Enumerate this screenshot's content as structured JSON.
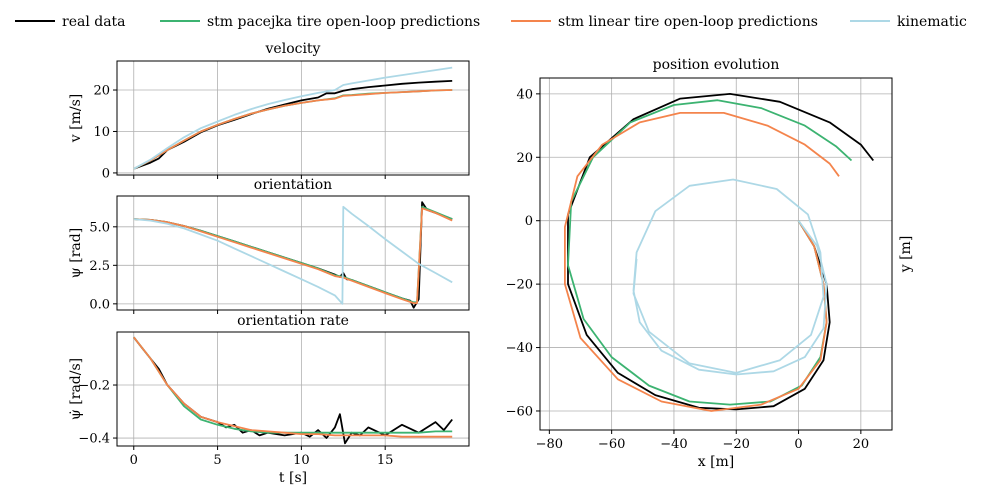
{
  "legend": [
    {
      "label": "real data",
      "color": "#000000"
    },
    {
      "label": "stm pacejka tire open-loop predictions",
      "color": "#3cb371"
    },
    {
      "label": "stm linear tire open-loop predictions",
      "color": "#f4844c"
    },
    {
      "label": "kinematic",
      "color": "#add8e6"
    }
  ],
  "chart_data": [
    {
      "type": "line",
      "title": "velocity",
      "xlabel": "",
      "ylabel": "v [m/s]",
      "xlim": [
        -1,
        20
      ],
      "ylim": [
        -0.5,
        27
      ],
      "xticks": [
        0,
        5,
        10,
        15
      ],
      "xtick_labels_visible": false,
      "yticks": [
        0,
        10,
        20
      ],
      "ytick_labels": [
        "0",
        "10",
        "20"
      ],
      "grid": true,
      "series": [
        {
          "name": "real data",
          "color": "#000000",
          "x": [
            0,
            1,
            1.5,
            2,
            3,
            4,
            5,
            6,
            7,
            8,
            9,
            10,
            11,
            11.5,
            12,
            12.5,
            13,
            14,
            15,
            16,
            17,
            18,
            19
          ],
          "y": [
            1.0,
            2.5,
            3.5,
            5.5,
            7.5,
            9.8,
            11.5,
            12.8,
            14.2,
            15.5,
            16.5,
            17.5,
            18.2,
            19.2,
            19.2,
            19.8,
            20.2,
            20.7,
            21.1,
            21.5,
            21.8,
            22.0,
            22.2
          ]
        },
        {
          "name": "stm pacejka tire open-loop predictions",
          "color": "#3cb371",
          "x": [
            0,
            1,
            2,
            3,
            4,
            5,
            6,
            7,
            8,
            9,
            10,
            11,
            12,
            12.5,
            13,
            14,
            15,
            16,
            17,
            18,
            19
          ],
          "y": [
            1.0,
            3.0,
            5.5,
            7.8,
            10.0,
            11.6,
            13.0,
            14.3,
            15.3,
            16.2,
            16.9,
            17.5,
            18.0,
            18.7,
            18.8,
            19.1,
            19.3,
            19.5,
            19.7,
            19.9,
            20.0
          ]
        },
        {
          "name": "stm linear tire open-loop predictions",
          "color": "#f4844c",
          "x": [
            0,
            1,
            2,
            3,
            4,
            5,
            6,
            7,
            8,
            9,
            10,
            11,
            12,
            12.5,
            13,
            14,
            15,
            16,
            17,
            18,
            19
          ],
          "y": [
            1.0,
            3.0,
            5.5,
            7.8,
            10.0,
            11.6,
            13.0,
            14.3,
            15.3,
            16.2,
            16.9,
            17.5,
            17.9,
            18.6,
            18.7,
            19.0,
            19.3,
            19.5,
            19.7,
            19.9,
            20.0
          ]
        },
        {
          "name": "kinematic",
          "color": "#add8e6",
          "x": [
            0,
            1,
            2,
            3,
            4,
            5,
            6,
            7,
            8,
            9,
            10,
            11,
            12,
            12.5,
            13,
            14,
            15,
            16,
            17,
            18,
            19
          ],
          "y": [
            1.0,
            3.2,
            6.0,
            8.6,
            10.8,
            12.4,
            14.0,
            15.4,
            16.6,
            17.6,
            18.5,
            19.3,
            20.0,
            21.2,
            21.6,
            22.3,
            23.0,
            23.6,
            24.2,
            24.8,
            25.4
          ]
        }
      ]
    },
    {
      "type": "line",
      "title": "orientation",
      "xlabel": "",
      "ylabel": "ψ [rad]",
      "xlim": [
        -1,
        20
      ],
      "ylim": [
        -0.4,
        7.0
      ],
      "xticks": [
        0,
        5,
        10,
        15
      ],
      "xtick_labels_visible": false,
      "yticks": [
        0.0,
        2.5,
        5.0
      ],
      "ytick_labels": [
        "0.0",
        "2.5",
        "5.0"
      ],
      "grid": true,
      "series": [
        {
          "name": "real data",
          "color": "#000000",
          "x": [
            0,
            1,
            2,
            3,
            4,
            5,
            6,
            7,
            8,
            9,
            10,
            11,
            12,
            12.3,
            12.5,
            12.7,
            13,
            14,
            15,
            16,
            16.5,
            16.7,
            17.0,
            17.2,
            17.5,
            18,
            19
          ],
          "y": [
            5.5,
            5.45,
            5.3,
            5.05,
            4.75,
            4.4,
            4.05,
            3.7,
            3.35,
            3.0,
            2.65,
            2.3,
            1.9,
            1.75,
            2.0,
            1.6,
            1.55,
            1.15,
            0.75,
            0.35,
            0.2,
            -0.25,
            0.3,
            6.6,
            6.1,
            5.9,
            5.5
          ]
        },
        {
          "name": "stm pacejka tire open-loop predictions",
          "color": "#3cb371",
          "x": [
            0,
            1,
            2,
            3,
            4,
            5,
            6,
            7,
            8,
            9,
            10,
            11,
            12,
            12.5,
            13,
            14,
            15,
            16,
            16.7,
            16.9,
            17.2,
            18,
            19
          ],
          "y": [
            5.5,
            5.45,
            5.3,
            5.05,
            4.75,
            4.4,
            4.05,
            3.7,
            3.35,
            3.0,
            2.65,
            2.3,
            1.85,
            1.75,
            1.55,
            1.15,
            0.75,
            0.35,
            0.1,
            0.1,
            6.3,
            5.95,
            5.5
          ]
        },
        {
          "name": "stm linear tire open-loop predictions",
          "color": "#f4844c",
          "x": [
            0,
            1,
            2,
            3,
            4,
            5,
            6,
            7,
            8,
            9,
            10,
            11,
            12,
            12.5,
            13,
            14,
            15,
            16,
            16.7,
            16.9,
            17.2,
            18,
            19
          ],
          "y": [
            5.5,
            5.45,
            5.3,
            5.05,
            4.7,
            4.35,
            4.0,
            3.65,
            3.3,
            2.95,
            2.6,
            2.25,
            1.8,
            1.7,
            1.5,
            1.1,
            0.7,
            0.3,
            0.05,
            0.05,
            6.2,
            5.9,
            5.4
          ]
        },
        {
          "name": "kinematic",
          "color": "#add8e6",
          "x": [
            0,
            1,
            2,
            3,
            4,
            5,
            6,
            7,
            8,
            9,
            10,
            11,
            12,
            12.45,
            12.5,
            13,
            14,
            15,
            16,
            17,
            18,
            19
          ],
          "y": [
            5.5,
            5.4,
            5.2,
            4.9,
            4.5,
            4.1,
            3.6,
            3.1,
            2.6,
            2.1,
            1.6,
            1.1,
            0.55,
            0.0,
            6.3,
            5.85,
            5.05,
            4.2,
            3.4,
            2.6,
            2.0,
            1.4
          ]
        }
      ]
    },
    {
      "type": "line",
      "title": "orientation rate",
      "xlabel": "t [s]",
      "ylabel": "ψ̇ [rad/s]",
      "xlim": [
        -1,
        20
      ],
      "ylim": [
        -0.43,
        0.0
      ],
      "xticks": [
        0,
        5,
        10,
        15
      ],
      "xtick_labels": [
        "0",
        "5",
        "10",
        "15"
      ],
      "yticks": [
        -0.4,
        -0.2
      ],
      "ytick_labels": [
        "−0.4",
        "−0.2"
      ],
      "grid": true,
      "series": [
        {
          "name": "real data",
          "color": "#000000",
          "x": [
            0,
            0.5,
            1,
            1.5,
            2,
            3,
            4,
            5,
            5.5,
            6,
            6.5,
            7,
            7.5,
            8,
            9,
            10,
            10.5,
            11,
            11.5,
            12,
            12.3,
            12.6,
            13,
            13.5,
            14,
            15,
            16,
            17,
            18,
            18.5,
            19
          ],
          "y": [
            -0.02,
            -0.06,
            -0.1,
            -0.14,
            -0.2,
            -0.27,
            -0.32,
            -0.34,
            -0.36,
            -0.35,
            -0.38,
            -0.37,
            -0.39,
            -0.38,
            -0.39,
            -0.38,
            -0.395,
            -0.37,
            -0.4,
            -0.36,
            -0.31,
            -0.42,
            -0.38,
            -0.39,
            -0.36,
            -0.39,
            -0.35,
            -0.38,
            -0.34,
            -0.37,
            -0.33
          ]
        },
        {
          "name": "stm pacejka tire open-loop predictions",
          "color": "#3cb371",
          "x": [
            0,
            1,
            2,
            3,
            4,
            5,
            6,
            7,
            8,
            9,
            10,
            11,
            12,
            13,
            14,
            15,
            16,
            17,
            18,
            19
          ],
          "y": [
            -0.02,
            -0.1,
            -0.2,
            -0.28,
            -0.33,
            -0.35,
            -0.365,
            -0.375,
            -0.38,
            -0.38,
            -0.38,
            -0.38,
            -0.38,
            -0.38,
            -0.38,
            -0.38,
            -0.38,
            -0.38,
            -0.375,
            -0.375
          ]
        },
        {
          "name": "stm linear tire open-loop predictions",
          "color": "#f4844c",
          "x": [
            0,
            1,
            2,
            3,
            4,
            5,
            6,
            7,
            8,
            9,
            10,
            11,
            12,
            13,
            14,
            15,
            16,
            17,
            18,
            19
          ],
          "y": [
            -0.02,
            -0.1,
            -0.2,
            -0.27,
            -0.32,
            -0.34,
            -0.355,
            -0.37,
            -0.375,
            -0.38,
            -0.385,
            -0.385,
            -0.39,
            -0.39,
            -0.39,
            -0.39,
            -0.395,
            -0.395,
            -0.395,
            -0.395
          ]
        }
      ]
    },
    {
      "type": "line",
      "title": "position evolution",
      "xlabel": "x [m]",
      "ylabel": "y [m]",
      "xlim": [
        -83,
        30
      ],
      "ylim": [
        -66,
        45
      ],
      "xticks": [
        -80,
        -60,
        -40,
        -20,
        0,
        20
      ],
      "xtick_labels": [
        "−80",
        "−60",
        "−40",
        "−20",
        "0",
        "20"
      ],
      "yticks": [
        -60,
        -40,
        -20,
        0,
        20,
        40
      ],
      "ytick_labels": [
        "−60",
        "−40",
        "−20",
        "0",
        "20",
        "40"
      ],
      "grid": true,
      "series": [
        {
          "name": "real data",
          "color": "#000000",
          "x": [
            0,
            5,
            9,
            10,
            8,
            2,
            -8,
            -20,
            -32,
            -46,
            -58,
            -68,
            -74,
            -74,
            -67,
            -53,
            -38,
            -22,
            -6,
            10,
            20,
            24
          ],
          "y": [
            0,
            -8,
            -20,
            -32,
            -44,
            -53,
            -58.5,
            -59.5,
            -59,
            -55,
            -48,
            -36,
            -20,
            2,
            20,
            32,
            38.5,
            40,
            37.5,
            31,
            24,
            19
          ]
        },
        {
          "name": "stm pacejka tire open-loop predictions",
          "color": "#3cb371",
          "x": [
            0,
            5,
            8,
            9,
            7,
            1,
            -9,
            -22,
            -35,
            -48,
            -60,
            -69,
            -74,
            -73,
            -66,
            -54,
            -40,
            -26,
            -12,
            2,
            12,
            17
          ],
          "y": [
            0,
            -8,
            -20,
            -32,
            -43,
            -52,
            -57,
            -58,
            -57,
            -52,
            -43,
            -31,
            -14,
            6,
            20,
            31,
            36.5,
            38,
            35.5,
            30,
            23.5,
            19
          ]
        },
        {
          "name": "stm linear tire open-loop predictions",
          "color": "#f4844c",
          "x": [
            0,
            5,
            8,
            9,
            7,
            0,
            -12,
            -28,
            -44,
            -58,
            -70,
            -75,
            -75,
            -71,
            -63,
            -51,
            -38,
            -24,
            -10,
            2,
            10,
            13
          ],
          "y": [
            0,
            -8,
            -20,
            -32,
            -44,
            -53,
            -58,
            -60,
            -57,
            -50,
            -37,
            -20,
            -2,
            14,
            24,
            31,
            34,
            34,
            30,
            24,
            18,
            14
          ]
        },
        {
          "name": "kinematic",
          "color": "#add8e6",
          "x": [
            0,
            6,
            9,
            8,
            2,
            -8,
            -20,
            -32,
            -44,
            -51,
            -53,
            -52,
            -46,
            -35,
            -21,
            -7,
            3,
            7,
            8,
            4,
            -6,
            -20,
            -35,
            -48,
            -53,
            -52
          ],
          "y": [
            0,
            -8,
            -20,
            -34,
            -43,
            -47.5,
            -48.5,
            -47,
            -41,
            -32,
            -22,
            -10,
            3,
            11,
            13,
            10,
            2,
            -10,
            -24,
            -36,
            -44,
            -48,
            -45,
            -35,
            -23,
            -12
          ]
        }
      ]
    }
  ]
}
